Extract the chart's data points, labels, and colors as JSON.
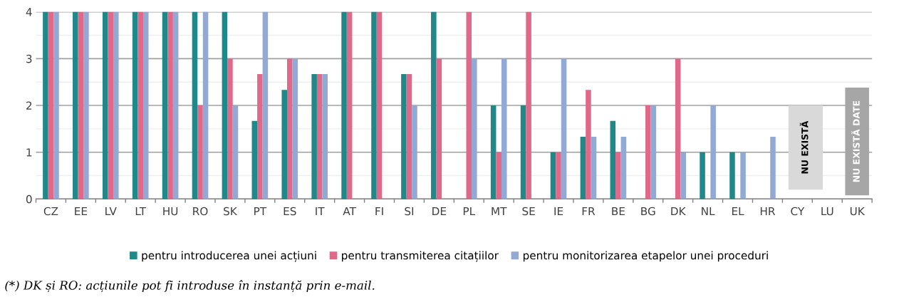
{
  "chart_data": {
    "type": "bar",
    "categories": [
      "CZ",
      "EE",
      "LV",
      "LT",
      "HU",
      "RO",
      "SK",
      "PT",
      "ES",
      "IT",
      "AT",
      "FI",
      "SI",
      "DE",
      "PL",
      "MT",
      "SE",
      "IE",
      "FR",
      "BE",
      "BG",
      "DK",
      "NL",
      "EL",
      "HR",
      "CY",
      "LU",
      "UK"
    ],
    "series": [
      {
        "name": "pentru introducerea unei acțiuni",
        "color": "#21888a",
        "values": [
          4,
          4,
          4,
          4,
          4,
          4,
          4,
          1.67,
          2.33,
          2.67,
          4,
          4,
          2.67,
          4,
          null,
          2,
          2,
          1,
          1.33,
          1.67,
          null,
          null,
          1,
          1,
          null,
          null,
          null,
          null
        ]
      },
      {
        "name": "pentru transmiterea citațiilor",
        "color": "#e0698a",
        "values": [
          4,
          4,
          4,
          4,
          4,
          2,
          3,
          2.67,
          3,
          2.67,
          4,
          4,
          2.67,
          3,
          4,
          1,
          4,
          1,
          2.33,
          1,
          2,
          3,
          null,
          null,
          null,
          null,
          null,
          null
        ]
      },
      {
        "name": "pentru monitorizarea etapelor unei proceduri",
        "color": "#92a9d6",
        "values": [
          4,
          4,
          4,
          4,
          4,
          4,
          2,
          4,
          3,
          2.67,
          null,
          null,
          2,
          null,
          3,
          3,
          null,
          3,
          1.33,
          1.33,
          2,
          1,
          2,
          1,
          1.33,
          null,
          null,
          null
        ]
      }
    ],
    "ylim": [
      0,
      4
    ],
    "yticks": [
      0,
      1,
      2,
      3,
      4
    ],
    "grid": "y",
    "legend": "bottom",
    "annotations": [
      "NU EXISTĂ",
      "NU EXISTĂ DATE",
      "(*) DK și RO: acțiunile pot fi introduse în instanță prin e-mail."
    ]
  }
}
